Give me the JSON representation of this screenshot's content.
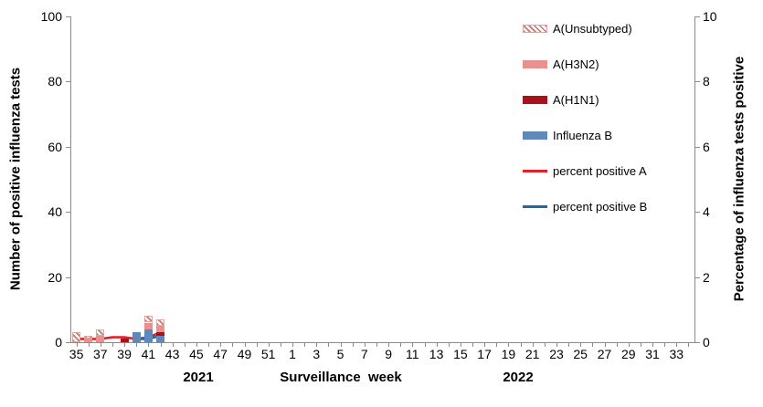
{
  "chart_data": {
    "type": "bar+line combo (stacked bars, left axis; percent lines, right axis)",
    "y_left": {
      "title": "Number of positive influenza tests",
      "min": 0,
      "max": 100,
      "ticks": [
        0,
        20,
        40,
        60,
        80,
        100
      ]
    },
    "y_right": {
      "title": "Percentage of influenza tests positive",
      "min": 0,
      "max": 10,
      "ticks": [
        0,
        2,
        4,
        6,
        8,
        10
      ]
    },
    "x_axis": {
      "title": "Surveillance  week",
      "week_ranges": [
        {
          "year": "2021",
          "start": 35,
          "end": 52
        },
        {
          "year": "2022",
          "start": 1,
          "end": 34
        }
      ],
      "tick_labels": [
        "35",
        "37",
        "39",
        "41",
        "43",
        "45",
        "47",
        "49",
        "51",
        "1",
        "3",
        "5",
        "7",
        "9",
        "11",
        "13",
        "15",
        "17",
        "19",
        "21",
        "23",
        "25",
        "27",
        "29",
        "31",
        "33"
      ],
      "year_labels": [
        "2021",
        "2022"
      ]
    },
    "stack_order": [
      "Influenza B",
      "A(H1N1)",
      "A(H3N2)",
      "A(Unsubtyped)"
    ],
    "bar_colors": {
      "A(H3N2)": "#e8928f",
      "A(H1N1)": "#a81219",
      "Influenza B": "#6088b8",
      "A(Unsubtyped)": "hatch"
    },
    "bars": [
      {
        "week": "35",
        "A(Unsubtyped)": 3
      },
      {
        "week": "36",
        "A(H3N2)": 1,
        "A(Unsubtyped)": 1
      },
      {
        "week": "37",
        "A(H3N2)": 2,
        "A(Unsubtyped)": 2
      },
      {
        "week": "39",
        "A(H1N1)": 1
      },
      {
        "week": "40",
        "Influenza B": 3
      },
      {
        "week": "41",
        "Influenza B": 4,
        "A(H3N2)": 2,
        "A(Unsubtyped)": 2
      },
      {
        "week": "42",
        "Influenza B": 2,
        "A(H1N1)": 1,
        "A(H3N2)": 2,
        "A(Unsubtyped)": 2
      }
    ],
    "lines": [
      {
        "name": "percent positive A",
        "color": "#e32227",
        "points": [
          [
            "35",
            0.1
          ],
          [
            "36",
            0.1
          ],
          [
            "37",
            0.1
          ],
          [
            "38",
            0.15
          ],
          [
            "39",
            0.15
          ],
          [
            "40",
            0.1
          ],
          [
            "41",
            0.15
          ],
          [
            "42",
            0.3
          ]
        ]
      },
      {
        "name": "percent positive B",
        "color": "#2268a2",
        "points": [
          [
            "40",
            0.1
          ],
          [
            "41",
            0.1
          ],
          [
            "42",
            0.2
          ]
        ]
      }
    ],
    "legend": [
      {
        "label": "A(Unsubtyped)",
        "swatch": "hatch",
        "color": ""
      },
      {
        "label": "A(H3N2)",
        "swatch": "box",
        "color": "#e8928f"
      },
      {
        "label": "A(H1N1)",
        "swatch": "box",
        "color": "#a81219"
      },
      {
        "label": "Influenza B",
        "swatch": "box",
        "color": "#6088b8"
      },
      {
        "label": "percent positive A",
        "swatch": "line",
        "color": "#e32227"
      },
      {
        "label": "percent positive B",
        "swatch": "line",
        "color": "#2268a2"
      }
    ],
    "axis_color": "#8a8a8a"
  }
}
